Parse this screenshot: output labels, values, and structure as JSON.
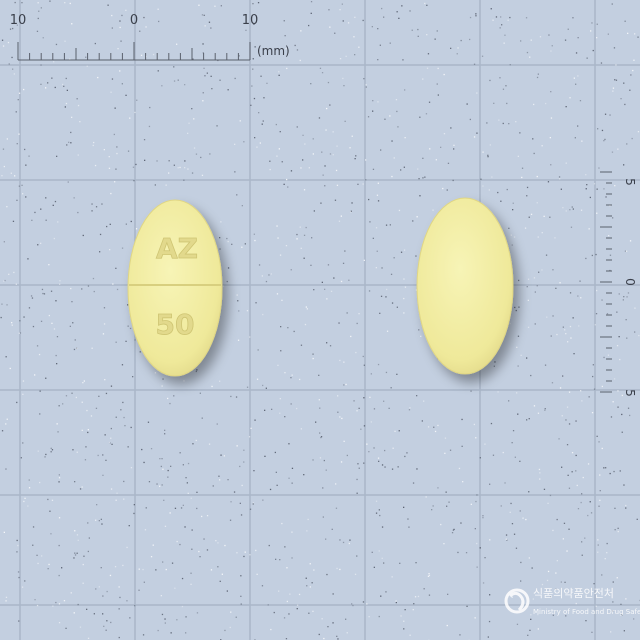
{
  "background_color": "#c3cfe0",
  "grid_color": "#a9b6c8",
  "ruler": {
    "top_labels": [
      "10",
      "0",
      "10"
    ],
    "unit": "(mm)",
    "side_labels": [
      "5",
      "0",
      "5"
    ]
  },
  "pills": [
    {
      "name": "front-face",
      "color": "#f3efa3",
      "imprint_lines": [
        "AZ",
        "50"
      ]
    },
    {
      "name": "back-face",
      "color": "#f3efa3",
      "imprint_lines": []
    }
  ],
  "watermark": {
    "korean": "식품의약품안전처",
    "english": "Ministry of Food and Drug Safety",
    "icon": "mfds-logo-icon"
  }
}
